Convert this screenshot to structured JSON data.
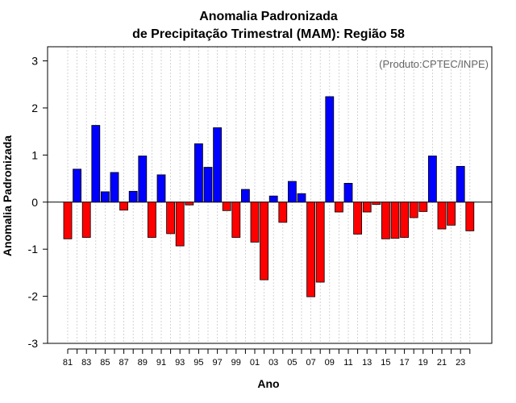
{
  "chart_data": {
    "type": "bar",
    "title": "Anomalia Padronizada",
    "subtitle": "de Precipitação Trimestral (MAM): Região 58",
    "xlabel": "Ano",
    "ylabel": "Anomalia Padronizada",
    "annotation": "(Produto:CPTEC/INPE)",
    "ylim": [
      -3,
      3.3
    ],
    "yticks": [
      -3,
      -2,
      -1,
      0,
      1,
      2,
      3
    ],
    "grid": "vertical dotted",
    "colors": {
      "positive": "#0000ff",
      "negative": "#ff0000"
    },
    "categories": [
      "1981",
      "1982",
      "1983",
      "1984",
      "1985",
      "1986",
      "1987",
      "1988",
      "1989",
      "1990",
      "1991",
      "1992",
      "1993",
      "1994",
      "1995",
      "1996",
      "1997",
      "1998",
      "1999",
      "2000",
      "2001",
      "2002",
      "2003",
      "2004",
      "2005",
      "2006",
      "2007",
      "2008",
      "2009",
      "2010",
      "2011",
      "2012",
      "2013",
      "2014",
      "2015",
      "2016",
      "2017",
      "2018",
      "2019",
      "2020",
      "2021",
      "2022",
      "2023",
      "2024"
    ],
    "xtick_labels": [
      "81",
      "83",
      "85",
      "87",
      "89",
      "91",
      "93",
      "95",
      "97",
      "99",
      "01",
      "03",
      "05",
      "07",
      "09",
      "11",
      "13",
      "15",
      "17",
      "19",
      "21",
      "23"
    ],
    "values": [
      -0.78,
      0.7,
      -0.75,
      1.63,
      0.22,
      0.63,
      -0.17,
      0.23,
      0.98,
      -0.75,
      0.58,
      -0.67,
      -0.93,
      -0.06,
      1.24,
      0.74,
      1.58,
      -0.18,
      -0.75,
      0.27,
      -0.85,
      -1.65,
      0.13,
      -0.43,
      0.44,
      0.18,
      -2.01,
      -1.7,
      2.24,
      -0.21,
      0.4,
      -0.68,
      -0.21,
      -0.05,
      -0.78,
      -0.77,
      -0.75,
      -0.33,
      -0.2,
      0.98,
      -0.57,
      -0.49,
      0.76,
      -0.61
    ]
  }
}
